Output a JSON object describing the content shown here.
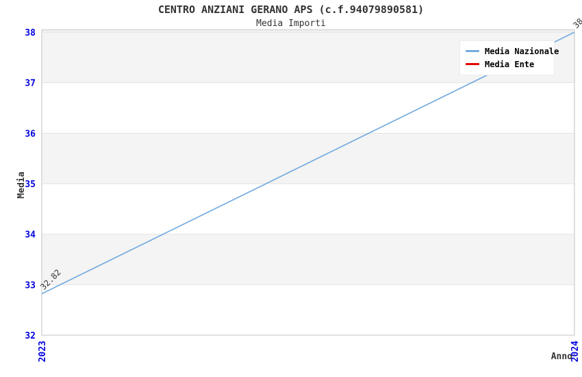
{
  "chart_data": {
    "type": "line",
    "title": "CENTRO ANZIANI GERANO APS (c.f.94079890581)",
    "subtitle": "Media Importi",
    "xlabel": "Anno",
    "ylabel": "Media",
    "x": [
      "2023",
      "2024"
    ],
    "yticks": [
      32,
      33,
      34,
      35,
      36,
      37,
      38
    ],
    "ylim": [
      32,
      38
    ],
    "grid": "horizontal-bands",
    "legend_position": "top-right",
    "series": [
      {
        "name": "Media Nazionale",
        "color": "#74abdf",
        "values": [
          32.82,
          38.0
        ],
        "point_labels": [
          "32.82",
          "38.00"
        ]
      },
      {
        "name": "Media Ente",
        "color": "#e60000",
        "values": [],
        "point_labels": []
      }
    ]
  },
  "colors": {
    "tick_label": "#0202dd",
    "text": "#333333",
    "point_label": "#333333",
    "band": "#f4f4f4",
    "gridline": "#e2e2e2",
    "plot_border": "#cfcfcf",
    "legend_bg": "#ffffff"
  }
}
